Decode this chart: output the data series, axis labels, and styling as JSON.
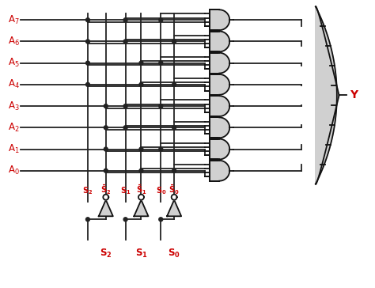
{
  "bg_color": "#ffffff",
  "line_color": "#222222",
  "label_color": "#cc0000",
  "gate_fill": "#d0d0d0",
  "gate_edge": "#111111",
  "inputs": [
    "A7",
    "A6",
    "A5",
    "A4",
    "A3",
    "A2",
    "A1",
    "A0"
  ],
  "output_label": "Y",
  "fig_width": 4.74,
  "fig_height": 3.64,
  "dpi": 100,
  "lw": 1.3
}
